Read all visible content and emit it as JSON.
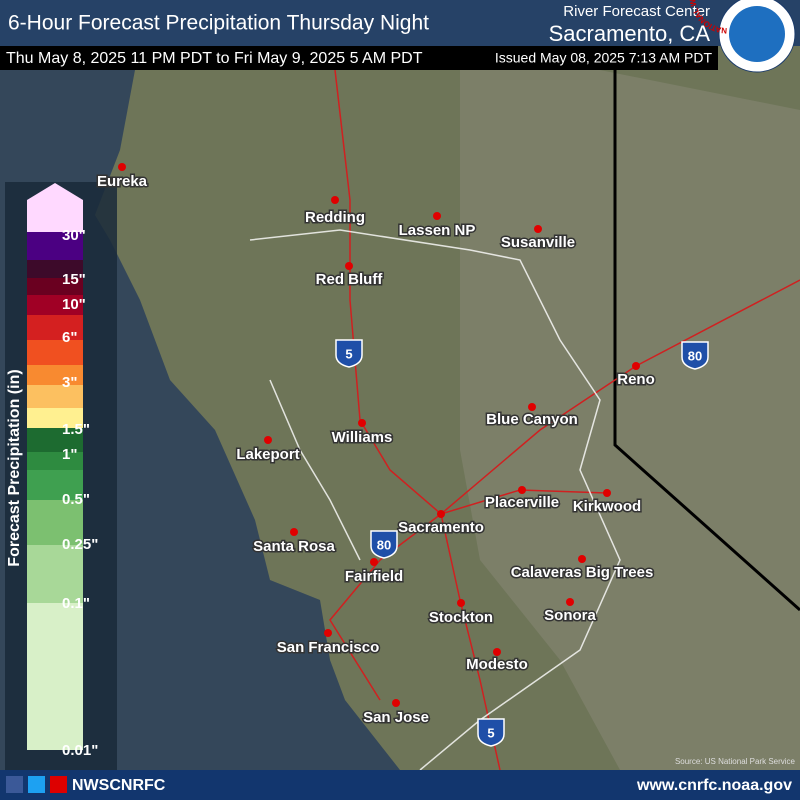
{
  "header": {
    "title": "6-Hour Forecast Precipitation Thursday Night",
    "center_line1": "River Forecast Center",
    "center_line2": "Sacramento, CA",
    "period": "Thu May 8, 2025 11 PM PDT to Fri May 9, 2025 5 AM PDT",
    "issued": "Issued May 08, 2025 7:13 AM PDT",
    "logo_text": "NATIONAL WEATHER SERVICE"
  },
  "legend": {
    "title": "Forecast Precipitation (in)",
    "labels": [
      "30\"",
      "15\"",
      "10\"",
      "6\"",
      "3\"",
      "1.5\"",
      "1\"",
      "0.5\"",
      "0.25\"",
      "0.1\"",
      "0.01\""
    ],
    "colors": [
      "#ffd9ff",
      "#ffd9ff",
      "#4b0082",
      "#3d0a2a",
      "#6a0020",
      "#a00025",
      "#d42020",
      "#f05020",
      "#f88a30",
      "#fcc060",
      "#fff090",
      "#1d6b30",
      "#2e8b40",
      "#3fa050",
      "#7cc070",
      "#a8d898",
      "#d8f0c8"
    ]
  },
  "cities": [
    "Eureka",
    "Redding",
    "Lassen NP",
    "Susanville",
    "Red Bluff",
    "Reno",
    "Blue Canyon",
    "Williams",
    "Lakeport",
    "Placerville",
    "Kirkwood",
    "Sacramento",
    "Santa Rosa",
    "Calaveras Big Trees",
    "Fairfield",
    "Stockton",
    "Sonora",
    "San Francisco",
    "Modesto",
    "San Jose"
  ],
  "shields": [
    "5",
    "80",
    "80",
    "5"
  ],
  "source": "Source: US National Park Service",
  "footer": {
    "handle": "NWSCNRFC",
    "url": "www.cnrfc.noaa.gov"
  }
}
